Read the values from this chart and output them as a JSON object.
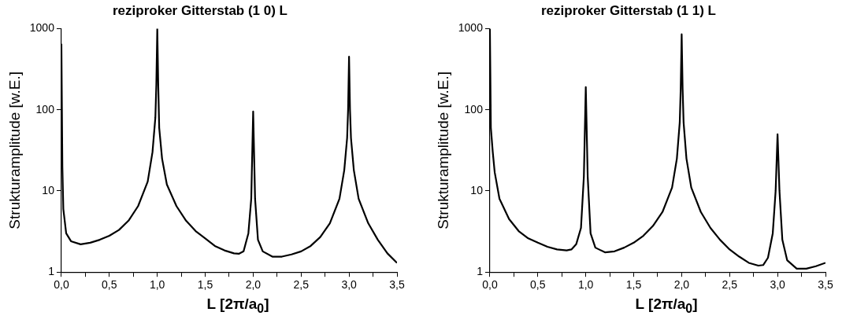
{
  "chart_data": [
    {
      "type": "line",
      "title": "reziproker Gitterstab (1 0) L",
      "xlabel": "L [2π/a$_{0}$]",
      "ylabel": "Strukturamplitude [w.E.]",
      "log": "y",
      "grid": false,
      "legend": false,
      "xlim": [
        0,
        3.5
      ],
      "xticks": [
        {
          "value": 0,
          "label": "0,0"
        },
        {
          "value": 0.25,
          "label": null
        },
        {
          "value": 0.5,
          "label": "0,5"
        },
        {
          "value": 0.75,
          "label": null
        },
        {
          "value": 1,
          "label": "1,0"
        },
        {
          "value": 1.25,
          "label": null
        },
        {
          "value": 1.5,
          "label": "1,5"
        },
        {
          "value": 1.75,
          "label": null
        },
        {
          "value": 2,
          "label": "2,0"
        },
        {
          "value": 2.25,
          "label": null
        },
        {
          "value": 2.5,
          "label": "2,5"
        },
        {
          "value": 2.75,
          "label": null
        },
        {
          "value": 3,
          "label": "3,0"
        },
        {
          "value": 3.25,
          "label": null
        },
        {
          "value": 3.5,
          "label": "3,5"
        }
      ],
      "ylim": [
        1,
        1000
      ],
      "yticks": [
        1,
        10,
        100,
        1000
      ],
      "series": [
        {
          "color": "#000000",
          "x": [
            0,
            0.01,
            0.02,
            0.05,
            0.1,
            0.2,
            0.3,
            0.4,
            0.5,
            0.6,
            0.7,
            0.8,
            0.9,
            0.95,
            0.98,
            0.99,
            1.0,
            1.01,
            1.02,
            1.05,
            1.1,
            1.2,
            1.3,
            1.4,
            1.5,
            1.6,
            1.7,
            1.8,
            1.85,
            1.9,
            1.95,
            1.98,
            2.0,
            2.02,
            2.05,
            2.1,
            2.2,
            2.3,
            2.4,
            2.5,
            2.6,
            2.7,
            2.8,
            2.9,
            2.95,
            2.98,
            2.99,
            3.0,
            3.01,
            3.02,
            3.05,
            3.1,
            3.2,
            3.3,
            3.4,
            3.5
          ],
          "values": [
            650,
            20,
            6,
            3,
            2.4,
            2.2,
            2.3,
            2.5,
            2.8,
            3.3,
            4.3,
            6.5,
            13,
            30,
            80,
            200,
            1000,
            200,
            60,
            25,
            12,
            6.5,
            4.3,
            3.2,
            2.6,
            2.1,
            1.85,
            1.7,
            1.68,
            1.8,
            3,
            8,
            95,
            8,
            2.5,
            1.8,
            1.55,
            1.55,
            1.65,
            1.8,
            2.1,
            2.7,
            4,
            8,
            18,
            45,
            100,
            450,
            100,
            45,
            18,
            8,
            4,
            2.5,
            1.7,
            1.3
          ]
        }
      ]
    },
    {
      "type": "line",
      "title": "reziproker Gitterstab (1 1) L",
      "xlabel": "L [2π/a$_{0}$]",
      "ylabel": "Strukturamplitude [w.E.]",
      "log": "y",
      "grid": false,
      "legend": false,
      "xlim": [
        0,
        3.5
      ],
      "xticks": [
        {
          "value": 0,
          "label": "0,0"
        },
        {
          "value": 0.25,
          "label": null
        },
        {
          "value": 0.5,
          "label": "0,5"
        },
        {
          "value": 0.75,
          "label": null
        },
        {
          "value": 1,
          "label": "1,0"
        },
        {
          "value": 1.25,
          "label": null
        },
        {
          "value": 1.5,
          "label": "1,5"
        },
        {
          "value": 1.75,
          "label": null
        },
        {
          "value": 2,
          "label": "2,0"
        },
        {
          "value": 2.25,
          "label": null
        },
        {
          "value": 2.5,
          "label": "2,5"
        },
        {
          "value": 2.75,
          "label": null
        },
        {
          "value": 3,
          "label": "3,0"
        },
        {
          "value": 3.25,
          "label": null
        },
        {
          "value": 3.5,
          "label": "3,5"
        }
      ],
      "ylim": [
        1,
        1000
      ],
      "yticks": [
        1,
        10,
        100,
        1000
      ],
      "series": [
        {
          "color": "#000000",
          "x": [
            0,
            0.01,
            0.03,
            0.05,
            0.1,
            0.2,
            0.3,
            0.4,
            0.5,
            0.6,
            0.7,
            0.8,
            0.85,
            0.9,
            0.95,
            0.98,
            1.0,
            1.02,
            1.05,
            1.1,
            1.2,
            1.3,
            1.4,
            1.5,
            1.6,
            1.7,
            1.8,
            1.9,
            1.95,
            1.98,
            1.99,
            2.0,
            2.01,
            2.02,
            2.05,
            2.1,
            2.2,
            2.3,
            2.4,
            2.5,
            2.6,
            2.7,
            2.8,
            2.85,
            2.9,
            2.95,
            2.98,
            3.0,
            3.02,
            3.05,
            3.1,
            3.2,
            3.3,
            3.4,
            3.5
          ],
          "values": [
            1000,
            60,
            30,
            17,
            8,
            4.5,
            3.2,
            2.6,
            2.3,
            2.05,
            1.9,
            1.85,
            1.9,
            2.2,
            3.5,
            15,
            190,
            15,
            3,
            2,
            1.75,
            1.8,
            2,
            2.3,
            2.8,
            3.7,
            5.5,
            11,
            25,
            70,
            180,
            850,
            180,
            70,
            25,
            11,
            5.5,
            3.5,
            2.5,
            1.9,
            1.55,
            1.3,
            1.2,
            1.22,
            1.5,
            3,
            10,
            50,
            10,
            2.5,
            1.4,
            1.1,
            1.1,
            1.18,
            1.3
          ]
        }
      ]
    }
  ]
}
